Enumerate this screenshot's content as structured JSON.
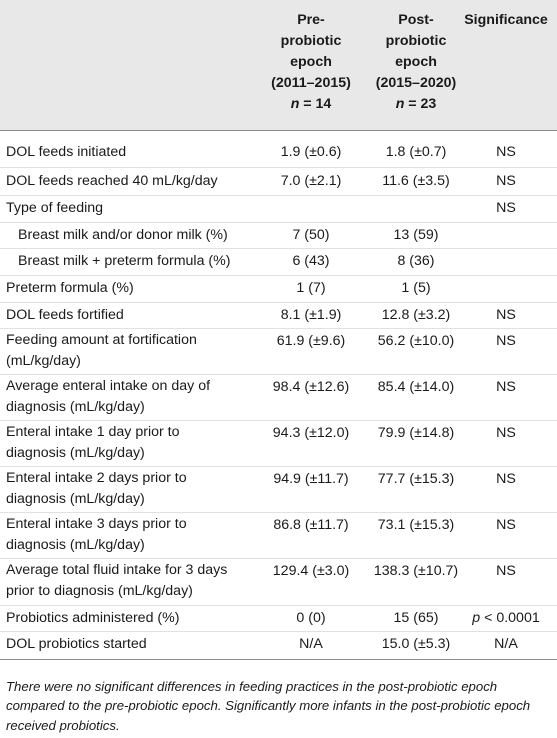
{
  "header": {
    "pre": {
      "l1": "Pre-",
      "l2": "probiotic",
      "l3": "epoch",
      "l4": "(2011–2015)",
      "n_label": "n",
      "n_value": " = 14"
    },
    "post": {
      "l1": "Post-",
      "l2": "probiotic",
      "l3": "epoch",
      "l4": "(2015–2020)",
      "n_label": "n",
      "n_value": " = 23"
    },
    "significance": "Significance"
  },
  "rows": [
    {
      "label1": "DOL feeds initiated",
      "label2": "",
      "pre": "1.9 (±0.6)",
      "post": "1.8 (±0.7)",
      "sig": "NS"
    },
    {
      "label1": "DOL feeds reached 40 mL/kg/day",
      "label2": "",
      "pre": "7.0 (±2.1)",
      "post": "11.6 (±3.5)",
      "sig": "NS"
    },
    {
      "label1": "Type of feeding",
      "label2": "",
      "pre": "",
      "post": "",
      "sig": "NS"
    },
    {
      "label1": "Breast milk and/or donor milk (%)",
      "label2": "",
      "pre": "7 (50)",
      "post": "13 (59)",
      "sig": ""
    },
    {
      "label1": "Breast milk + preterm formula (%)",
      "label2": "",
      "pre": "6 (43)",
      "post": "8 (36)",
      "sig": ""
    },
    {
      "label1": "Preterm formula (%)",
      "label2": "",
      "pre": "1 (7)",
      "post": "1 (5)",
      "sig": ""
    },
    {
      "label1": "DOL feeds fortified",
      "label2": "",
      "pre": "8.1 (±1.9)",
      "post": "12.8 (±3.2)",
      "sig": "NS"
    },
    {
      "label1": "Feeding amount at fortification",
      "label2": "(mL/kg/day)",
      "pre": "61.9 (±9.6)",
      "post": "56.2 (±10.0)",
      "sig": "NS"
    },
    {
      "label1": "Average enteral intake on day of",
      "label2": "diagnosis (mL/kg/day)",
      "pre": "98.4 (±12.6)",
      "post": "85.4 (±14.0)",
      "sig": "NS"
    },
    {
      "label1": "Enteral intake 1 day prior to",
      "label2": "diagnosis (mL/kg/day)",
      "pre": "94.3 (±12.0)",
      "post": "79.9 (±14.8)",
      "sig": "NS"
    },
    {
      "label1": "Enteral intake 2 days prior to",
      "label2": "diagnosis (mL/kg/day)",
      "pre": "94.9 (±11.7)",
      "post": "77.7 (±15.3)",
      "sig": "NS"
    },
    {
      "label1": "Enteral intake 3 days prior to",
      "label2": "diagnosis (mL/kg/day)",
      "pre": "86.8 (±11.7)",
      "post": "73.1 (±15.3)",
      "sig": "NS"
    },
    {
      "label1": "Average total fluid intake for 3 days",
      "label2": "prior to diagnosis (mL/kg/day)",
      "pre": "129.4 (±3.0)",
      "post": "138.3 (±10.7)",
      "sig": "NS"
    },
    {
      "label1": "Probiotics administered (%)",
      "label2": "",
      "pre": "0 (0)",
      "post": "15 (65)",
      "sig": "",
      "sig_p": "p",
      "sig_rest": " < 0.0001"
    },
    {
      "label1": "DOL probiotics started",
      "label2": "",
      "pre": "N/A",
      "post": "15.0 (±5.3)",
      "sig": "N/A"
    }
  ],
  "footnote": "There were no significant differences in feeding practices in the post-probiotic epoch compared to the pre-probiotic epoch. Significantly more infants in the post-probiotic epoch received probiotics."
}
